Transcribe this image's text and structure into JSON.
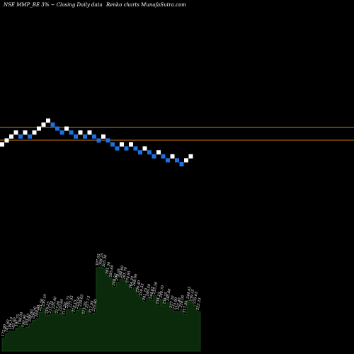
{
  "header": {
    "left": "NSE MMP_BE 3% ~ Closing Daily data",
    "right": "Renko charts MunafaSutra.com"
  },
  "colors": {
    "background": "#000000",
    "up_brick": "#ffffff",
    "down_brick": "#1e6fe0",
    "reference_line": "#c87a10",
    "volume_area": "#0b2a0b",
    "volume_outline": "#1a4a1a"
  },
  "chart_data": [
    {
      "type": "renko",
      "brick_size_percent": 3,
      "bricks": [
        "up",
        "up",
        "up",
        "up",
        "down",
        "up",
        "down",
        "up",
        "up",
        "up",
        "up",
        "down",
        "down",
        "down",
        "up",
        "down",
        "down",
        "up",
        "down",
        "up",
        "down",
        "down",
        "up",
        "down",
        "down",
        "down",
        "up",
        "down",
        "up",
        "down",
        "down",
        "up",
        "down",
        "down",
        "up",
        "down",
        "down",
        "up",
        "down",
        "down",
        "up",
        "up"
      ],
      "reference_lines": [
        "upper",
        "lower"
      ]
    },
    {
      "type": "area",
      "series": "volume",
      "labels": [
        "172.90",
        "181.60",
        "186.10",
        "185.60",
        "191.75",
        "196.00",
        "190.90",
        "193.45",
        "200.60",
        "206.50",
        "209.60",
        "221.50",
        "230.10",
        "216.25",
        "217.25",
        "225.40",
        "217.00",
        "220.60",
        "214.20",
        "226.75",
        "227.55",
        "219.15",
        "225.50",
        "229.65",
        "215.20",
        "227.15",
        "217.95",
        "220.40",
        "307.05",
        "308.25",
        "305.30",
        "291.50",
        "285.60",
        "269.50",
        "279.05",
        "284.60",
        "281.70",
        "274.85",
        "264.30",
        "268.60",
        "256.40",
        "250.55",
        "241.75",
        "249.50",
        "244.65",
        "253.50",
        "234.15",
        "246.70",
        "234.25",
        "240.60",
        "227.20",
        "223.90",
        "223.40",
        "228.05",
        "217.95",
        "244.45",
        "239.55",
        "235.05",
        "223.25"
      ]
    }
  ]
}
